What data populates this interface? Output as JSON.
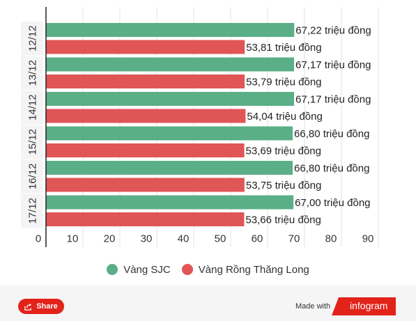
{
  "chart_data": {
    "type": "bar",
    "orientation": "horizontal",
    "categories": [
      "12/12",
      "13/12",
      "14/12",
      "15/12",
      "16/12",
      "17/12"
    ],
    "series": [
      {
        "name": "Vàng SJC",
        "color": "#5aaf86",
        "values": [
          67.22,
          67.17,
          67.17,
          66.8,
          66.8,
          67.0
        ]
      },
      {
        "name": "Vàng Rồng Thăng Long",
        "color": "#e05556",
        "values": [
          53.81,
          53.79,
          54.04,
          53.69,
          53.75,
          53.66
        ]
      }
    ],
    "data_labels": [
      [
        "67,22 triệu đồng",
        "67,17 triệu đồng",
        "67,17 triệu đồng",
        "66,80 triệu đồng",
        "66,80 triệu đồng",
        "67,00 triệu đồng"
      ],
      [
        "53,81 triệu đồng",
        "53,79 triệu đồng",
        "54,04 triệu đồng",
        "53,69 triệu đồng",
        "53,75 triệu đồng",
        "53,66 triệu đồng"
      ]
    ],
    "x_ticks": [
      "0",
      "10",
      "20",
      "30",
      "40",
      "50",
      "60",
      "70",
      "80",
      "90"
    ],
    "xlim": [
      0,
      90
    ],
    "grid": true,
    "legend": "bottom"
  },
  "footer": {
    "share_label": "Share",
    "made_with_label": "Made with",
    "brand_label": "infogram"
  }
}
